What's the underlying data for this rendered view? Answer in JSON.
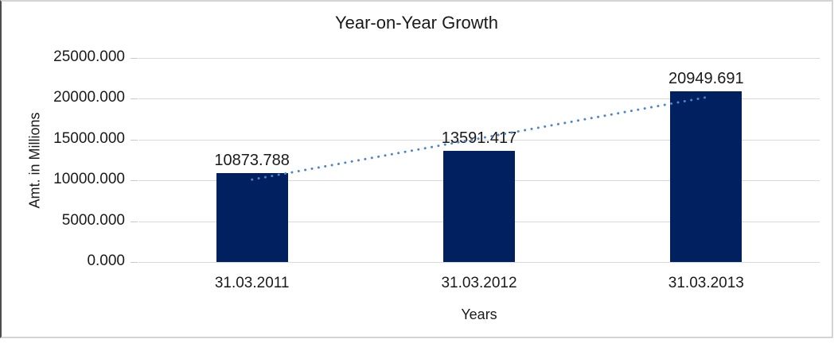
{
  "chart_data": {
    "type": "bar",
    "title": "Year-on-Year Growth",
    "categories": [
      "31.03.2011",
      "31.03.2012",
      "31.03.2013"
    ],
    "series": [
      {
        "name": "Amt. in Millions",
        "values": [
          10873.788,
          13591.417,
          20949.691
        ]
      }
    ],
    "data_labels": [
      "10873.788",
      "13591.417",
      "20949.691"
    ],
    "xlabel": "Years",
    "ylabel": "Amt. in Millions",
    "ylim": [
      0,
      25000
    ],
    "ytick_interval": 5000,
    "ytick_labels": [
      "0.000",
      "5000.000",
      "10000.000",
      "15000.000",
      "20000.000",
      "25000.000"
    ],
    "grid": true,
    "legend": "none",
    "trendline": {
      "type": "linear",
      "style": "dotted"
    },
    "colors": {
      "bar": "#002060",
      "trendline": "#4a86c8",
      "gridline": "#d9d9d9",
      "tick_mark": "#c9c9c9",
      "text": "#1a1a1a",
      "frame_border": "#d4d4d4",
      "frame_border_left": "#4d4d4d",
      "background": "#ffffff"
    }
  }
}
